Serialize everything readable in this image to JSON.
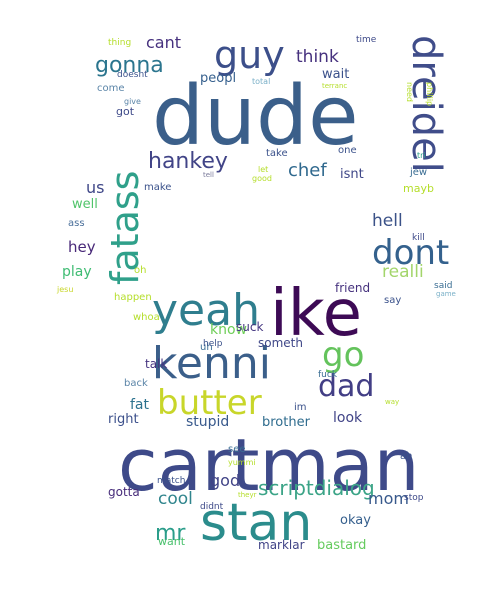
{
  "words": [
    {
      "text": "dude",
      "color": "#3b5f8a"
    },
    {
      "text": "cartman",
      "color": "#3e4a89"
    },
    {
      "text": "ike",
      "color": "#3d0a55"
    },
    {
      "text": "stan",
      "color": "#2b8c8c"
    },
    {
      "text": "kenni",
      "color": "#3b5f8a"
    },
    {
      "text": "yeah",
      "color": "#2f7e8e"
    },
    {
      "text": "dreidel",
      "color": "#404d8a"
    },
    {
      "text": "fatass",
      "color": "#2fa08a"
    },
    {
      "text": "guy",
      "color": "#3c4f8a"
    },
    {
      "text": "dont",
      "color": "#34618d"
    },
    {
      "text": "butter",
      "color": "#c8d62a"
    },
    {
      "text": "go",
      "color": "#64c35c"
    },
    {
      "text": "dad",
      "color": "#423e85"
    },
    {
      "text": "hankey",
      "color": "#414487"
    },
    {
      "text": "gonna",
      "color": "#2b758e"
    },
    {
      "text": "scriptdialog",
      "color": "#3ba487"
    },
    {
      "text": "mr",
      "color": "#2a9d8a"
    },
    {
      "text": "chef",
      "color": "#30698e"
    },
    {
      "text": "think",
      "color": "#46317e"
    },
    {
      "text": "hell",
      "color": "#3b5288"
    },
    {
      "text": "realli",
      "color": "#a3d56b"
    },
    {
      "text": "cant",
      "color": "#46317e"
    },
    {
      "text": "us",
      "color": "#3f4788"
    },
    {
      "text": "hey",
      "color": "#482878"
    },
    {
      "text": "cool",
      "color": "#30858d"
    },
    {
      "text": "god",
      "color": "#414487"
    },
    {
      "text": "mom",
      "color": "#38598c"
    },
    {
      "text": "wait",
      "color": "#3b518b"
    },
    {
      "text": "peopl",
      "color": "#355f8d"
    },
    {
      "text": "isnt",
      "color": "#3f4788"
    },
    {
      "text": "mayb",
      "color": "#b5de2b"
    },
    {
      "text": "well",
      "color": "#50c46a"
    },
    {
      "text": "play",
      "color": "#3fbc73"
    },
    {
      "text": "know",
      "color": "#6ece58"
    },
    {
      "text": "friend",
      "color": "#46327e"
    },
    {
      "text": "fat",
      "color": "#2c728e"
    },
    {
      "text": "right",
      "color": "#3c508b"
    },
    {
      "text": "stupid",
      "color": "#38598c"
    },
    {
      "text": "brother",
      "color": "#2f6c8e"
    },
    {
      "text": "look",
      "color": "#414487"
    },
    {
      "text": "okay",
      "color": "#355f8d"
    },
    {
      "text": "bastard",
      "color": "#65cb5e"
    },
    {
      "text": "marklar",
      "color": "#414487"
    },
    {
      "text": "gotta",
      "color": "#472c7a"
    },
    {
      "text": "want",
      "color": "#4ac16d"
    },
    {
      "text": "talk",
      "color": "#463480"
    },
    {
      "text": "suck",
      "color": "#453781"
    },
    {
      "text": "someth",
      "color": "#3f4788"
    },
    {
      "text": "ass",
      "color": "#4a6f9a"
    },
    {
      "text": "make",
      "color": "#3b528b"
    },
    {
      "text": "got",
      "color": "#3e4a89"
    },
    {
      "text": "come",
      "color": "#5b85a8"
    },
    {
      "text": "take",
      "color": "#3b528b"
    },
    {
      "text": "one",
      "color": "#3b528b"
    },
    {
      "text": "jew",
      "color": "#3b6e94"
    },
    {
      "text": "kill",
      "color": "#3e4a89"
    },
    {
      "text": "said",
      "color": "#3b6e94"
    },
    {
      "text": "say",
      "color": "#3b528b"
    },
    {
      "text": "uh",
      "color": "#3b6e94"
    },
    {
      "text": "fuck",
      "color": "#3b6e94"
    },
    {
      "text": "im",
      "color": "#3b528b"
    },
    {
      "text": "see",
      "color": "#3b6e94"
    },
    {
      "text": "ah",
      "color": "#3b528b"
    },
    {
      "text": "back",
      "color": "#5b85a8"
    },
    {
      "text": "whoa",
      "color": "#b5de2b"
    },
    {
      "text": "happen",
      "color": "#b5de2b"
    },
    {
      "text": "help",
      "color": "#3b528b"
    },
    {
      "text": "thing",
      "color": "#b5de2b"
    },
    {
      "text": "doesnt",
      "color": "#3b528b"
    },
    {
      "text": "give",
      "color": "#5b85a8"
    },
    {
      "text": "total",
      "color": "#7ab0c8"
    },
    {
      "text": "time",
      "color": "#3e4a89"
    },
    {
      "text": "need",
      "color": "#b5de2b"
    },
    {
      "text": "phillip",
      "color": "#b5de2b"
    },
    {
      "text": "tri",
      "color": "#2fa08a"
    },
    {
      "text": "let",
      "color": "#b5de2b"
    },
    {
      "text": "good",
      "color": "#b5de2b"
    },
    {
      "text": "tell",
      "color": "#7a7a9a"
    },
    {
      "text": "oh",
      "color": "#b5de2b"
    },
    {
      "text": "jesu",
      "color": "#c8d62a"
    },
    {
      "text": "game",
      "color": "#7ab0c8"
    },
    {
      "text": "way",
      "color": "#b5de2b"
    },
    {
      "text": "yummi",
      "color": "#b5de2b"
    },
    {
      "text": "match",
      "color": "#3b528b"
    },
    {
      "text": "didnt",
      "color": "#3e4a89"
    },
    {
      "text": "stop",
      "color": "#3e4a89"
    },
    {
      "text": "theyr",
      "color": "#b5de2b"
    },
    {
      "text": "terranc",
      "color": "#b5de2b"
    }
  ]
}
